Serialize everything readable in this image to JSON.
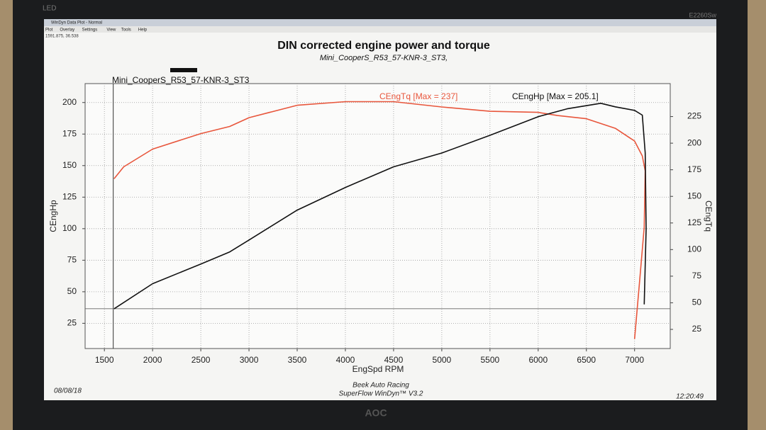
{
  "monitor": {
    "badge": "LED",
    "model": "E2260Sw",
    "brand": "AOC"
  },
  "window": {
    "title": "WinDyn Data Plot - Normal",
    "menu": [
      "Plot",
      "Overlay",
      "Settings",
      "View",
      "Tools",
      "Help"
    ],
    "status": "1591.875, 36.538"
  },
  "chart_data": {
    "type": "line",
    "title": "DIN corrected engine power and torque",
    "subtitle": "Mini_CooperS_R53_57-KNR-3_ST3,",
    "annotation": "Mini_CooperS_R53_57-KNR-3_ST3",
    "x_label": "EngSpd RPM",
    "y_label": "CEngHp",
    "y2_label": "CEngTq",
    "xlim": [
      1300,
      7370
    ],
    "ylim": [
      5,
      215
    ],
    "y2lim": [
      7,
      256
    ],
    "xticks": [
      1500,
      2000,
      2500,
      3000,
      3500,
      4000,
      4500,
      5000,
      5500,
      6000,
      6500,
      7000
    ],
    "yticks": [
      25,
      50,
      75,
      100,
      125,
      150,
      175,
      200
    ],
    "y2ticks": [
      25,
      50,
      75,
      100,
      125,
      150,
      175,
      200,
      225
    ],
    "grid": true,
    "series": [
      {
        "name": "CEngTq [Max = 237]",
        "color": "#e8563c",
        "axis": "y2",
        "x": [
          1600,
          1700,
          2000,
          2500,
          2800,
          3000,
          3500,
          4000,
          4500,
          5000,
          5500,
          6000,
          6200,
          6500,
          6800,
          7000,
          7080,
          7110,
          7100,
          7050,
          7000
        ],
        "values": [
          166.5,
          177.8,
          194.4,
          209,
          215.7,
          224,
          235.6,
          239,
          239,
          234,
          230,
          229,
          226,
          223,
          214,
          202,
          188,
          174,
          121,
          68,
          16
        ]
      },
      {
        "name": "CEngHp [Max = 205.1]",
        "color": "#111111",
        "axis": "y",
        "x": [
          1600,
          2000,
          2500,
          2800,
          3000,
          3500,
          4000,
          4500,
          5000,
          5500,
          6000,
          6300,
          6650,
          6800,
          7000,
          7080,
          7110,
          7120,
          7100
        ],
        "values": [
          36.5,
          56.4,
          72,
          81.6,
          91,
          114.7,
          132.7,
          149,
          160,
          174,
          188.8,
          195,
          199.4,
          196.6,
          193.8,
          190,
          160,
          100,
          40
        ]
      }
    ]
  },
  "footer": {
    "date": "08/08/18",
    "company": "Beek Auto Racing",
    "software": "SuperFlow WinDyn™ V3.2",
    "time": "12:20:49"
  }
}
